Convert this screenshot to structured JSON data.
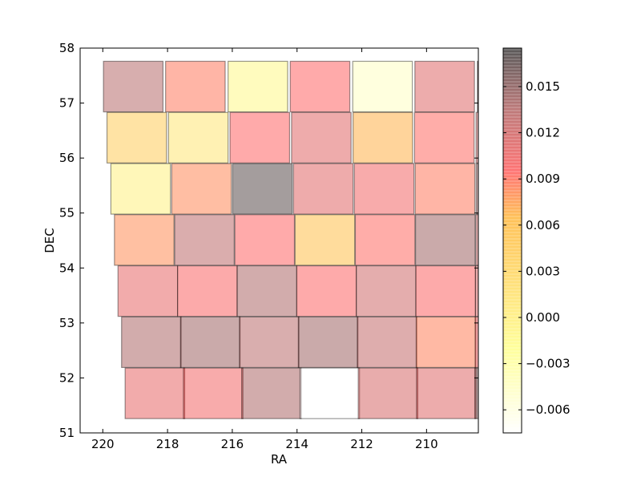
{
  "chart_data": {
    "type": "heatmap",
    "title": "",
    "xlabel": "RA",
    "ylabel": "DEC",
    "xlim": [
      220.7,
      208.4
    ],
    "ylim": [
      51,
      58
    ],
    "x_ticks": [
      220,
      218,
      216,
      214,
      212,
      210
    ],
    "x_tick_labels": [
      "220",
      "218",
      "216",
      "214",
      "212",
      "210"
    ],
    "y_ticks": [
      51,
      52,
      53,
      54,
      55,
      56,
      57,
      58
    ],
    "y_tick_labels": [
      "51",
      "52",
      "53",
      "54",
      "55",
      "56",
      "57",
      "58"
    ],
    "colorbar": {
      "range": [
        -0.0075,
        0.0175
      ],
      "ticks": [
        -0.006,
        -0.003,
        0.0,
        0.003,
        0.006,
        0.009,
        0.012,
        0.015
      ],
      "tick_labels": [
        "−0.006",
        "−0.003",
        "0.000",
        "0.003",
        "0.006",
        "0.009",
        "0.012",
        "0.015"
      ],
      "stops": [
        {
          "value": -0.0075,
          "color": "#ffffff"
        },
        {
          "value": -0.002,
          "color": "#ffff66"
        },
        {
          "value": 0.0065,
          "color": "#ffa000"
        },
        {
          "value": 0.0095,
          "color": "#ff2a2a"
        },
        {
          "value": 0.0135,
          "color": "#9a3434"
        },
        {
          "value": 0.0175,
          "color": "#000000"
        }
      ]
    },
    "tile_half_width": 0.92,
    "tile_half_height": 0.46,
    "tiles": [
      {
        "ra": 219.06,
        "dec": 57.3,
        "value": 0.0135
      },
      {
        "ra": 217.14,
        "dec": 57.3,
        "value": 0.0088
      },
      {
        "ra": 215.21,
        "dec": 57.3,
        "value": -0.0012
      },
      {
        "ra": 213.29,
        "dec": 57.3,
        "value": 0.0095
      },
      {
        "ra": 211.36,
        "dec": 57.3,
        "value": -0.0045
      },
      {
        "ra": 209.44,
        "dec": 57.3,
        "value": 0.0113
      },
      {
        "ra": 207.51,
        "dec": 57.3,
        "value": 0.0153
      },
      {
        "ra": 218.95,
        "dec": 56.37,
        "value": 0.0042
      },
      {
        "ra": 217.05,
        "dec": 56.37,
        "value": 0.0012
      },
      {
        "ra": 215.15,
        "dec": 56.37,
        "value": 0.0095
      },
      {
        "ra": 213.25,
        "dec": 56.37,
        "value": 0.0112
      },
      {
        "ra": 211.35,
        "dec": 56.37,
        "value": 0.0068
      },
      {
        "ra": 209.45,
        "dec": 56.37,
        "value": 0.0093
      },
      {
        "ra": 207.55,
        "dec": 56.37,
        "value": 0.0125
      },
      {
        "ra": 218.83,
        "dec": 55.44,
        "value": -0.0002
      },
      {
        "ra": 216.95,
        "dec": 55.44,
        "value": 0.0082
      },
      {
        "ra": 215.07,
        "dec": 55.44,
        "value": 0.0168
      },
      {
        "ra": 213.19,
        "dec": 55.44,
        "value": 0.0112
      },
      {
        "ra": 211.31,
        "dec": 55.44,
        "value": 0.0102
      },
      {
        "ra": 209.43,
        "dec": 55.44,
        "value": 0.0088
      },
      {
        "ra": 207.55,
        "dec": 55.44,
        "value": 0.0148
      },
      {
        "ra": 218.72,
        "dec": 54.51,
        "value": 0.0081
      },
      {
        "ra": 216.86,
        "dec": 54.51,
        "value": 0.0132
      },
      {
        "ra": 215.0,
        "dec": 54.51,
        "value": 0.0095
      },
      {
        "ra": 213.14,
        "dec": 54.51,
        "value": 0.0058
      },
      {
        "ra": 211.28,
        "dec": 54.51,
        "value": 0.0093
      },
      {
        "ra": 209.42,
        "dec": 54.51,
        "value": 0.0143
      },
      {
        "ra": 207.56,
        "dec": 54.51,
        "value": 0.0125
      },
      {
        "ra": 218.61,
        "dec": 53.58,
        "value": 0.0108
      },
      {
        "ra": 216.77,
        "dec": 53.58,
        "value": 0.0098
      },
      {
        "ra": 214.93,
        "dec": 53.58,
        "value": 0.0138
      },
      {
        "ra": 213.09,
        "dec": 53.58,
        "value": 0.0096
      },
      {
        "ra": 211.25,
        "dec": 53.58,
        "value": 0.0122
      },
      {
        "ra": 209.41,
        "dec": 53.58,
        "value": 0.0097
      },
      {
        "ra": 207.57,
        "dec": 53.58,
        "value": 0.0118
      },
      {
        "ra": 218.5,
        "dec": 52.65,
        "value": 0.0138
      },
      {
        "ra": 216.68,
        "dec": 52.65,
        "value": 0.0143
      },
      {
        "ra": 214.86,
        "dec": 52.65,
        "value": 0.0133
      },
      {
        "ra": 213.04,
        "dec": 52.65,
        "value": 0.0143
      },
      {
        "ra": 211.22,
        "dec": 52.65,
        "value": 0.0128
      },
      {
        "ra": 209.4,
        "dec": 52.65,
        "value": 0.0085
      },
      {
        "ra": 207.58,
        "dec": 52.65,
        "value": 0.0102
      },
      {
        "ra": 218.39,
        "dec": 51.72,
        "value": 0.0108
      },
      {
        "ra": 216.59,
        "dec": 51.72,
        "value": 0.0102
      },
      {
        "ra": 214.79,
        "dec": 51.72,
        "value": 0.0138
      },
      {
        "ra": 212.99,
        "dec": 51.72,
        "value": -0.0075
      },
      {
        "ra": 211.19,
        "dec": 51.72,
        "value": 0.0118
      },
      {
        "ra": 209.39,
        "dec": 51.72,
        "value": 0.0113
      },
      {
        "ra": 207.59,
        "dec": 51.72,
        "value": 0.0152
      }
    ]
  }
}
